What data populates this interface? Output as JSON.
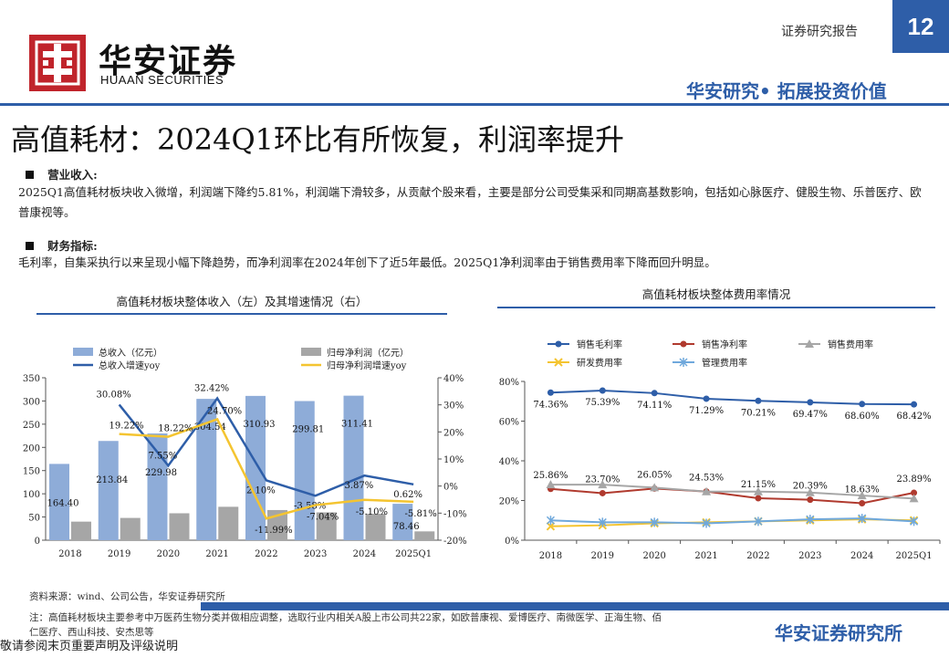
{
  "header": {
    "logo_cn": "华安证券",
    "logo_en": "HUAAN SECURITIES",
    "report_type": "证券研究报告",
    "page_number": "12",
    "slogan": "华安研究• 拓展投资价值",
    "logo_color": "#c0242b",
    "accent_color": "#2e5ea8"
  },
  "title": "高值耗材：2024Q1环比有所恢复，利润率提升",
  "sections": [
    {
      "heading": "营业收入:",
      "text": "2025Q1高值耗材板块收入微增，利润端下降约5.81%，利润端下滑较多，从贡献个股来看，主要是部分公司受集采和同期高基数影响，包括如心脉医疗、健股生物、乐普医疗、欧普康视等。"
    },
    {
      "heading": "财务指标:",
      "text": "毛利率，自集采执行以来呈现小幅下降趋势，而净利润率在2024年创下了近5年最低。2025Q1净利润率由于销售费用率下降而回升明显。"
    }
  ],
  "chart_data": [
    {
      "type": "bar",
      "title": "高值耗材板块整体收入（左）及其增速情况（右）",
      "categories": [
        "2018",
        "2019",
        "2020",
        "2021",
        "2022",
        "2023",
        "2024",
        "2025Q1"
      ],
      "ylim": [
        0,
        350
      ],
      "yticks": [
        "0",
        "50",
        "100",
        "150",
        "200",
        "250",
        "300",
        "350"
      ],
      "y2lim": [
        -20,
        40
      ],
      "y2ticks": [
        "-20%",
        "-10%",
        "0%",
        "10%",
        "20%",
        "30%",
        "40%"
      ],
      "legend_placement": "top",
      "series": [
        {
          "name": "总收入（亿元）",
          "axis": "left",
          "kind": "bar",
          "color": "#8eacd8",
          "values": [
            164.4,
            213.84,
            229.98,
            304.54,
            310.93,
            299.81,
            311.41,
            78.46
          ],
          "labels": [
            "164.40",
            "213.84",
            "229.98",
            "304.54",
            "310.93",
            "299.81",
            "311.41",
            "78.46"
          ]
        },
        {
          "name": "归母净利润（亿元）",
          "axis": "left",
          "kind": "bar",
          "color": "#a6a6a6",
          "values": [
            40,
            48,
            58,
            72,
            65,
            60,
            57,
            19
          ]
        },
        {
          "name": "总收入增速yoy",
          "axis": "right",
          "kind": "line",
          "color": "#2e5ea8",
          "values": [
            null,
            30.08,
            7.55,
            32.42,
            2.1,
            -3.58,
            3.87,
            0.62
          ],
          "labels": [
            "",
            "30.08%",
            "7.55%",
            "32.42%",
            "2.10%",
            "-3.58%",
            "3.87%",
            "0.62%"
          ]
        },
        {
          "name": "归母净利润增速yoy",
          "axis": "right",
          "kind": "line",
          "color": "#f4c430",
          "values": [
            null,
            19.22,
            18.22,
            24.7,
            -11.99,
            -7.04,
            -5.1,
            -5.81
          ],
          "labels": [
            "",
            "19.22%",
            "18.22%",
            "24.70%",
            "-11.99%",
            "-7.04%",
            "-5.10%",
            "-5.81%"
          ]
        }
      ]
    },
    {
      "type": "line",
      "title": "高值耗材板块整体费用率情况",
      "categories": [
        "2018",
        "2019",
        "2020",
        "2021",
        "2022",
        "2023",
        "2024",
        "2025Q1"
      ],
      "ylim": [
        0,
        80
      ],
      "yticks": [
        "0%",
        "20%",
        "40%",
        "60%",
        "80%"
      ],
      "legend_placement": "top",
      "series": [
        {
          "name": "销售毛利率",
          "color": "#2e5ea8",
          "marker": "circle",
          "values": [
            74.36,
            75.39,
            74.11,
            71.29,
            70.21,
            69.47,
            68.6,
            68.42
          ],
          "labels": [
            "74.36%",
            "75.39%",
            "74.11%",
            "71.29%",
            "70.21%",
            "69.47%",
            "68.60%",
            "68.42%"
          ]
        },
        {
          "name": "销售净利率",
          "color": "#b03a2e",
          "marker": "circle",
          "values": [
            25.86,
            23.7,
            26.05,
            24.53,
            21.15,
            20.39,
            18.63,
            23.89
          ],
          "labels": [
            "25.86%",
            "23.70%",
            "26.05%",
            "24.53%",
            "21.15%",
            "20.39%",
            "18.63%",
            "23.89%"
          ]
        },
        {
          "name": "销售费用率",
          "color": "#a6a6a6",
          "marker": "triangle",
          "values": [
            28,
            28,
            26.5,
            24.5,
            24.5,
            24,
            22.5,
            21
          ]
        },
        {
          "name": "研发费用率",
          "color": "#f4c430",
          "marker": "x",
          "values": [
            7,
            7.5,
            8.5,
            9,
            9.5,
            10,
            10.5,
            10
          ]
        },
        {
          "name": "管理费用率",
          "color": "#6fa8dc",
          "marker": "star",
          "values": [
            10,
            9,
            9,
            8.5,
            9.5,
            10.5,
            11,
            9.5
          ]
        }
      ]
    }
  ],
  "footer": {
    "source": "资料来源：wind、公司公告，华安证券研究所",
    "note": "注：高值耗材板块主要参考中万医药生物分类并做相应调整，选取行业内相关A股上市公司共22家，如欧普康视、爱博医疗、南微医学、正海生物、佰仁医疗、西山科技、安杰思等",
    "brand": "华安证券研究所",
    "disclaimer": "敬请参阅末页重要声明及评级说明"
  }
}
